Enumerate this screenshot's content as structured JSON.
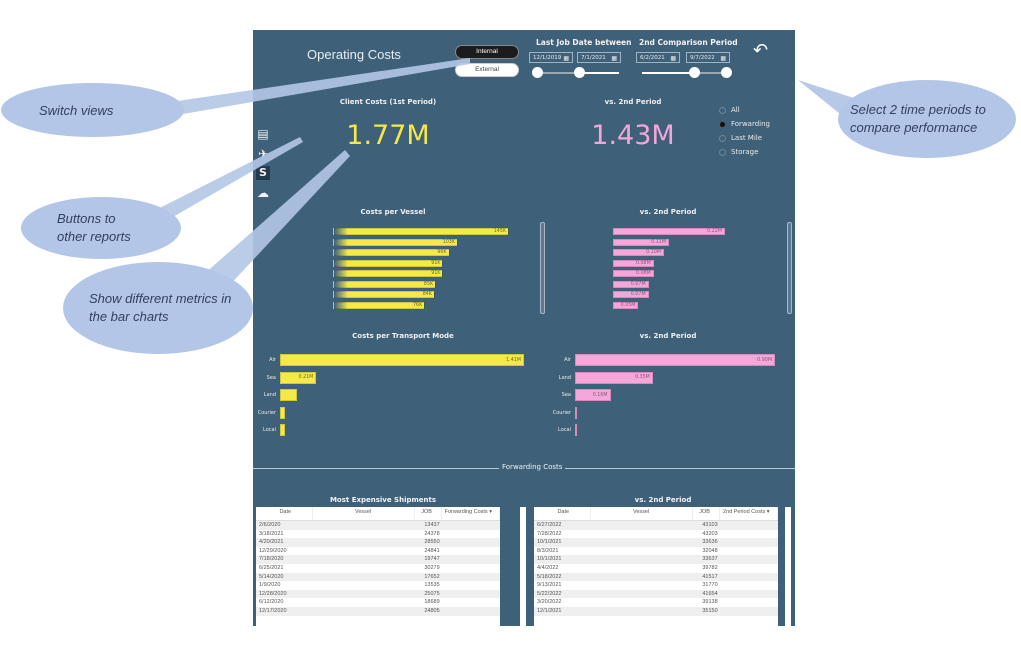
{
  "header": {
    "title": "Operating Costs",
    "view_toggle": {
      "options": [
        "Internal",
        "External"
      ],
      "selected": "Internal"
    },
    "period1": {
      "label": "Last Job Date between",
      "start": "12/1/2019",
      "end": "7/1/2021"
    },
    "period2": {
      "label": "2nd Comparison Period",
      "start": "6/2/2021",
      "end": "9/7/2022"
    },
    "back_icon": "undo-arrow-icon"
  },
  "nav_buttons": [
    {
      "icon": "document-icon"
    },
    {
      "icon": "airplane-icon"
    },
    {
      "icon": "dollar-icon",
      "glyph": "S"
    },
    {
      "icon": "cloud-icon"
    }
  ],
  "kpis": {
    "period1": {
      "title": "Client Costs (1st Period)",
      "value": "1.77M",
      "color": "#f5e94a"
    },
    "period2": {
      "title": "vs. 2nd Period",
      "value": "1.43M",
      "color": "#f2a6d9"
    }
  },
  "metric_selector": {
    "options": [
      "All",
      "Forwarding",
      "Last Mile",
      "Storage"
    ],
    "selected": "Forwarding"
  },
  "colors": {
    "period1": "#f5e94a",
    "period2": "#f5a6da",
    "background": "#3e6079"
  },
  "chart_data": [
    {
      "type": "bar",
      "title": "Costs per Vessel",
      "orientation": "horizontal",
      "categories": [
        "",
        "",
        "",
        "",
        "",
        "",
        "",
        ""
      ],
      "values": [
        145,
        103,
        96,
        91,
        91,
        85,
        84,
        76
      ],
      "labels": [
        "145K",
        "103K",
        "96K",
        "91K",
        "91K",
        "85K",
        "84K",
        "76K"
      ],
      "unit": "K",
      "xlim": [
        0,
        145
      ]
    },
    {
      "type": "bar",
      "title": "vs. 2nd Period",
      "orientation": "horizontal",
      "categories": [
        "",
        "",
        "",
        "",
        "",
        "",
        "",
        ""
      ],
      "values": [
        0.22,
        0.11,
        0.1,
        0.08,
        0.08,
        0.07,
        0.07,
        0.05
      ],
      "labels": [
        "0.22M",
        "0.11M",
        "0.10M",
        "0.08M",
        "0.08M",
        "0.07M",
        "0.07M",
        "0.05M"
      ],
      "unit": "M",
      "xlim": [
        0,
        0.22
      ]
    },
    {
      "type": "bar",
      "title": "Costs per Transport Mode",
      "orientation": "horizontal",
      "categories": [
        "Air",
        "Sea",
        "Land",
        "Courier",
        "Local"
      ],
      "values": [
        1.41,
        0.21,
        0.1,
        0.03,
        0.03
      ],
      "labels": [
        "1.41M",
        "0.21M",
        "",
        "",
        ""
      ],
      "unit": "M",
      "xlim": [
        0,
        1.41
      ]
    },
    {
      "type": "bar",
      "title": "vs. 2nd Period",
      "orientation": "horizontal",
      "categories": [
        "Air",
        "Land",
        "Sea",
        "Courier",
        "Local"
      ],
      "values": [
        0.9,
        0.35,
        0.16,
        0.01,
        0.01
      ],
      "labels": [
        "0.90M",
        "0.35M",
        "0.16M",
        "",
        ""
      ],
      "unit": "M",
      "xlim": [
        0,
        0.9
      ]
    }
  ],
  "section_label": "Forwarding Costs",
  "tables": [
    {
      "title": "Most Expensive Shipments",
      "columns": [
        "Date",
        "Vessel",
        "JOB",
        "Forwarding Costs"
      ],
      "rows": [
        [
          "2/6/2020",
          "",
          "13437",
          ""
        ],
        [
          "3/18/2021",
          "",
          "24378",
          ""
        ],
        [
          "4/20/2021",
          "",
          "28550",
          ""
        ],
        [
          "12/29/2020",
          "",
          "24841",
          ""
        ],
        [
          "7/18/2020",
          "",
          "19747",
          ""
        ],
        [
          "6/25/2021",
          "",
          "30279",
          ""
        ],
        [
          "5/14/2020",
          "",
          "17652",
          ""
        ],
        [
          "1/9/2020",
          "",
          "13535",
          ""
        ],
        [
          "12/28/2020",
          "",
          "25075",
          ""
        ],
        [
          "6/12/2020",
          "",
          "18689",
          ""
        ],
        [
          "12/17/2020",
          "",
          "24805",
          ""
        ]
      ]
    },
    {
      "title": "vs. 2nd Period",
      "columns": [
        "Date",
        "Vessel",
        "JOB",
        "2nd Period Costs"
      ],
      "rows": [
        [
          "6/27/2022",
          "",
          "43103",
          ""
        ],
        [
          "7/28/2022",
          "",
          "43203",
          ""
        ],
        [
          "10/1/2021",
          "",
          "33636",
          ""
        ],
        [
          "8/3/2021",
          "",
          "32048",
          ""
        ],
        [
          "10/1/2021",
          "",
          "33637",
          ""
        ],
        [
          "4/4/2022",
          "",
          "39782",
          ""
        ],
        [
          "5/18/2022",
          "",
          "41517",
          ""
        ],
        [
          "9/13/2021",
          "",
          "31770",
          ""
        ],
        [
          "5/22/2022",
          "",
          "41654",
          ""
        ],
        [
          "3/20/2022",
          "",
          "39138",
          ""
        ],
        [
          "12/1/2021",
          "",
          "35150",
          ""
        ]
      ]
    }
  ],
  "callouts": {
    "switch_views": "Switch views",
    "buttons_reports": "Buttons to other reports",
    "show_metrics": "Show different metrics in the bar charts",
    "select_periods": "Select 2 time periods to compare performance"
  }
}
